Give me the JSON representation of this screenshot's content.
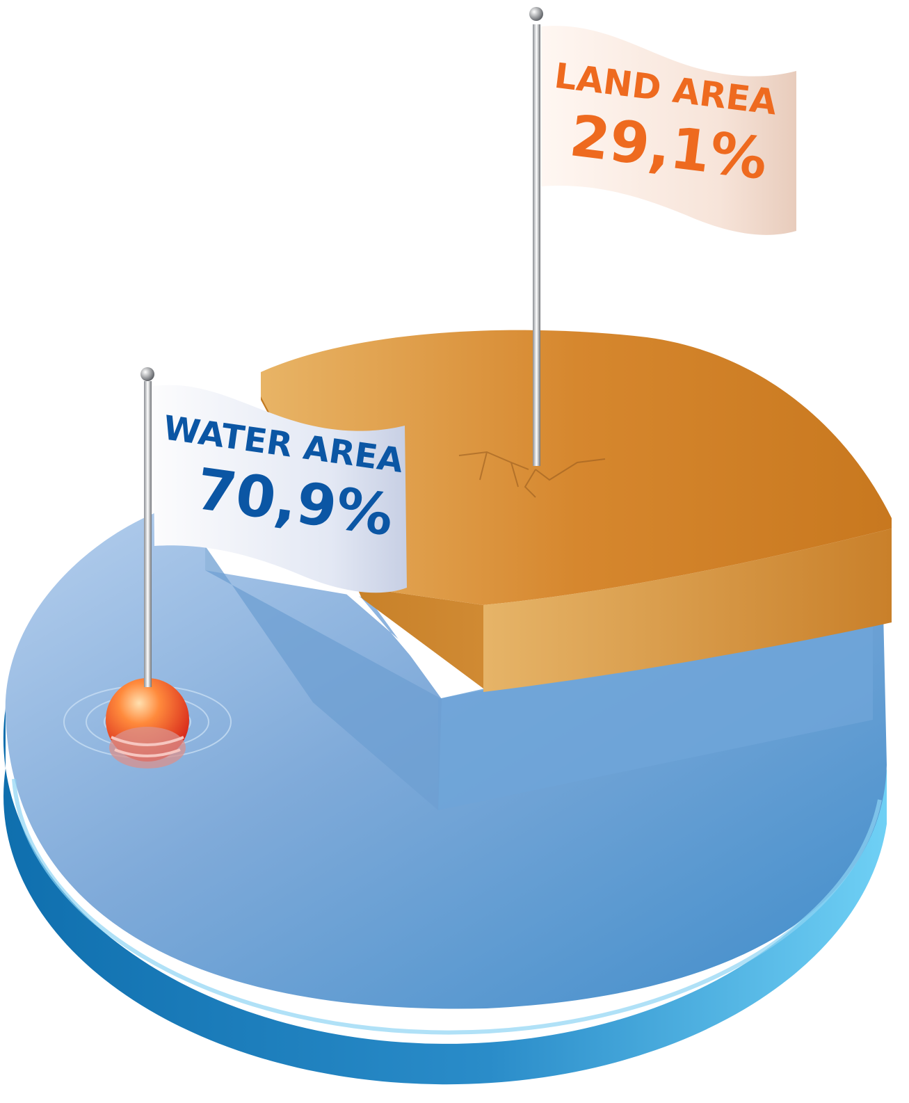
{
  "chart_data": {
    "type": "pie",
    "title": "",
    "slices": [
      {
        "label": "WATER AREA",
        "value": 70.9,
        "display": "70,9%",
        "color": "#4a90cf"
      },
      {
        "label": "LAND AREA",
        "value": 29.1,
        "display": "29,1%",
        "color": "#d9892e"
      }
    ],
    "style": "3d-exploded"
  },
  "colors": {
    "water_label": "#0b56a4",
    "land_label": "#ee6a1f",
    "buoy": "#e8341e"
  }
}
